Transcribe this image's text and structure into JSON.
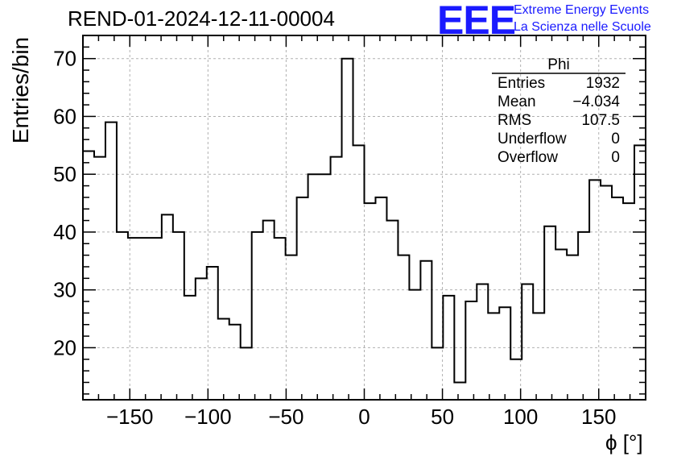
{
  "header": {
    "title": "REND-01-2024-12-11-00004",
    "logo_text": "EEE",
    "logo_line1": "Extreme Energy Events",
    "logo_line2": "La Scienza nelle Scuole"
  },
  "stats": {
    "title": "Phi",
    "rows": [
      {
        "label": "Entries",
        "value": "1932"
      },
      {
        "label": "Mean",
        "value": "−4.034"
      },
      {
        "label": "RMS",
        "value": "107.5"
      },
      {
        "label": "Underflow",
        "value": "0"
      },
      {
        "label": "Overflow",
        "value": "0"
      }
    ]
  },
  "chart_data": {
    "type": "histogram",
    "title": "REND-01-2024-12-11-00004",
    "xlabel": "ϕ [°]",
    "ylabel": "Entries/bin",
    "xlim": [
      -180,
      180
    ],
    "ylim": [
      11,
      74
    ],
    "xticks": [
      -150,
      -100,
      -50,
      0,
      50,
      100,
      150
    ],
    "xtick_labels": [
      "−150",
      "−100",
      "−50",
      "0",
      "50",
      "100",
      "150"
    ],
    "yticks": [
      20,
      30,
      40,
      50,
      60,
      70
    ],
    "grid": true,
    "bin_width": 7.2,
    "bin_start": -180,
    "values": [
      54,
      53,
      59,
      40,
      39,
      39,
      39,
      43,
      40,
      29,
      32,
      34,
      25,
      24,
      20,
      40,
      42,
      39,
      36,
      46,
      50,
      50,
      53,
      70,
      55,
      45,
      46,
      42,
      36,
      30,
      35,
      20,
      29,
      14,
      28,
      31,
      26,
      27,
      18,
      31,
      26,
      41,
      37,
      36,
      40,
      49,
      48,
      46,
      45,
      55
    ],
    "line_color": "#000000",
    "grid_color": "#b0b0b0"
  }
}
